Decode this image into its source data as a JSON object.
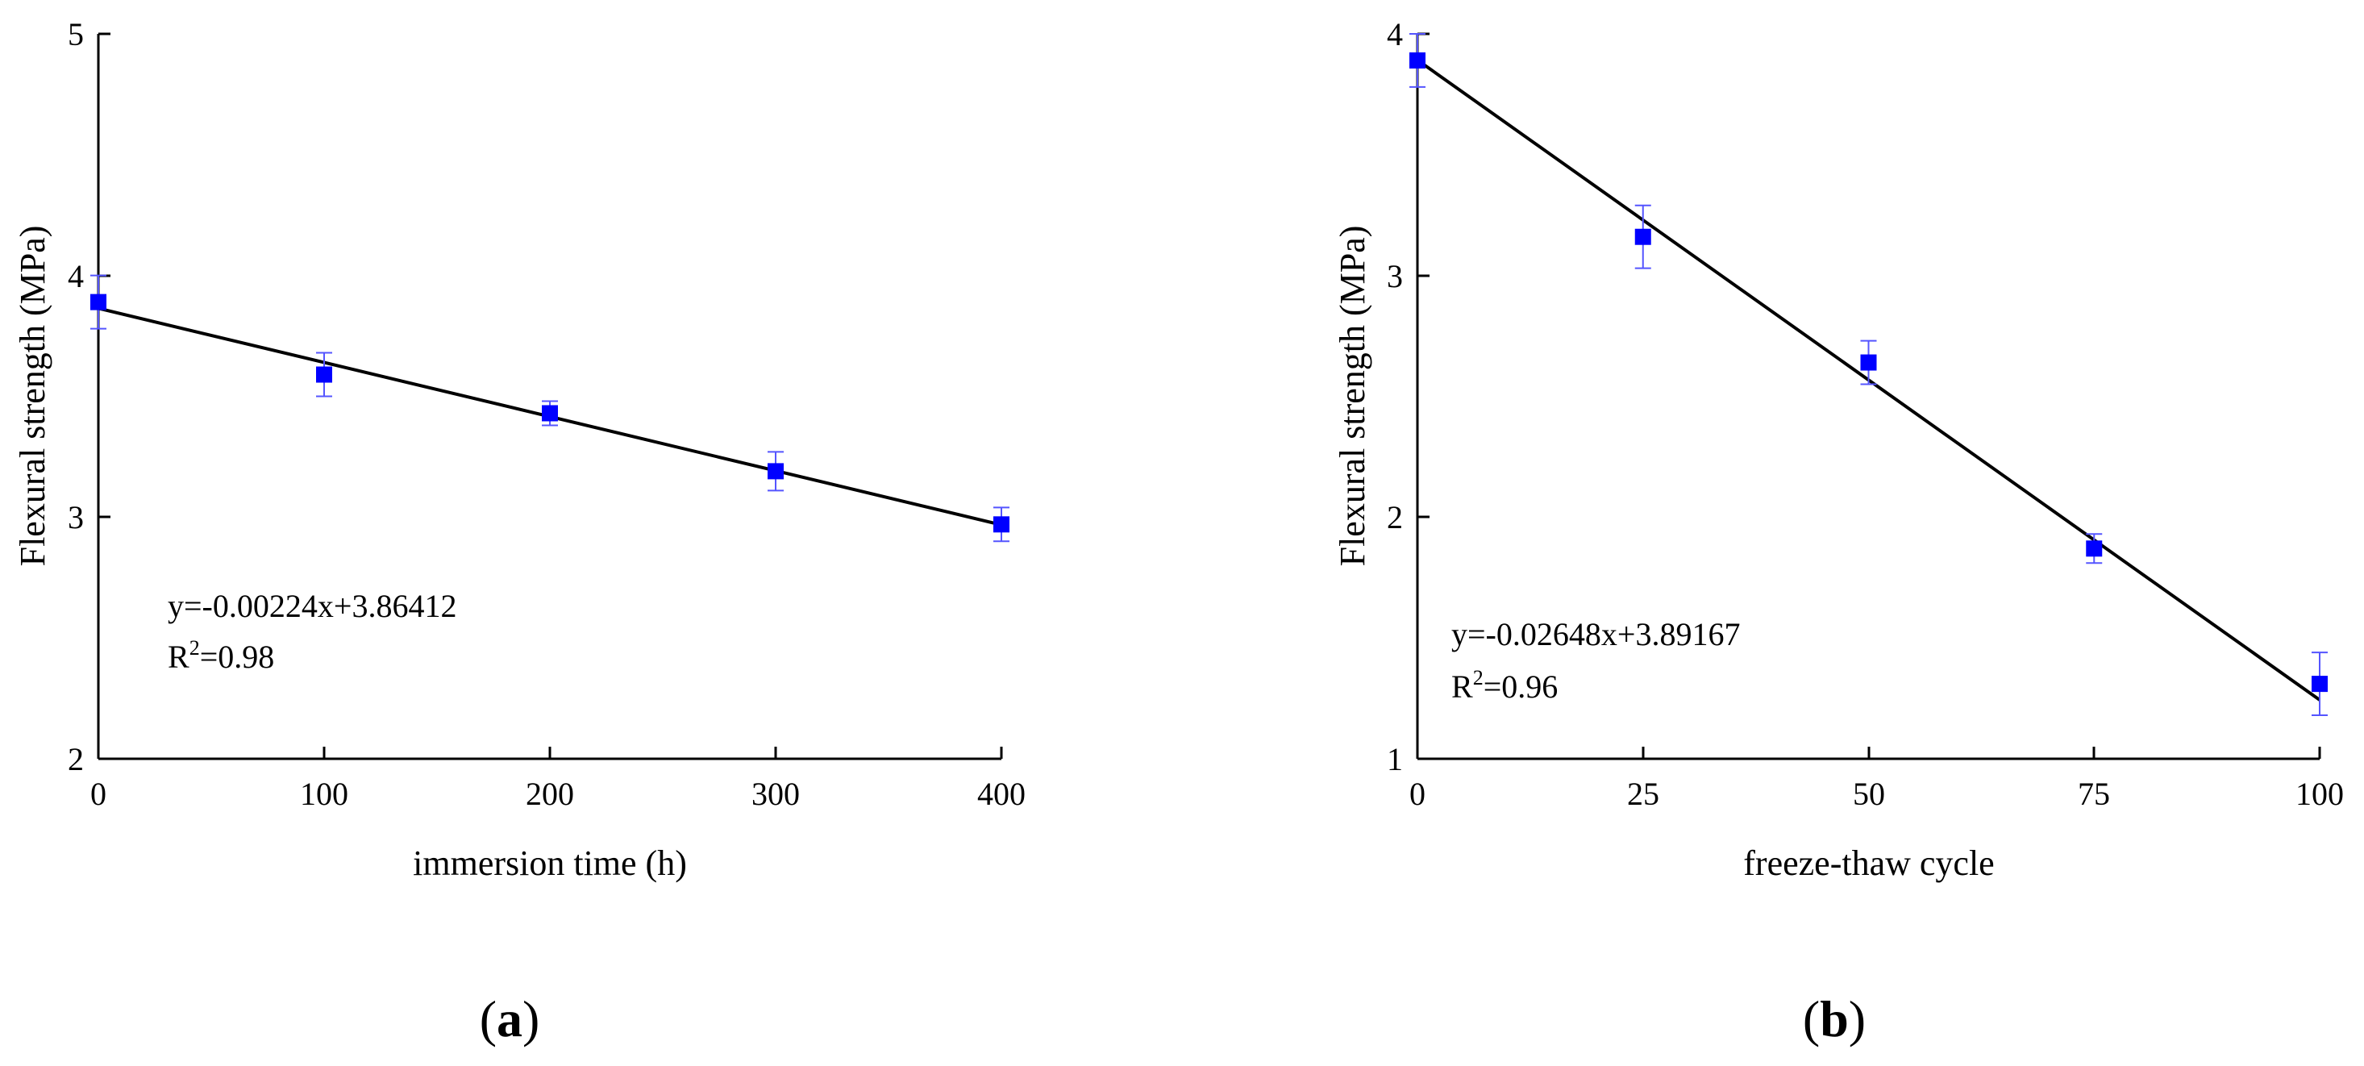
{
  "colors": {
    "marker": "#0000ff",
    "errorbar": "#5555ff",
    "axis": "#000000",
    "fit": "#000000"
  },
  "chart_data": [
    {
      "type": "scatter",
      "panel_label": "a",
      "xlabel": "immersion time (h)",
      "ylabel": "Flexural strength (MPa)",
      "xlim": [
        0,
        400
      ],
      "ylim": [
        2,
        5
      ],
      "xticks": [
        "0",
        "100",
        "200",
        "300",
        "400"
      ],
      "yticks": [
        "2",
        "3",
        "4",
        "5"
      ],
      "x": [
        0,
        100,
        200,
        300,
        400
      ],
      "y": [
        3.89,
        3.59,
        3.43,
        3.19,
        2.97
      ],
      "yerr": [
        0.11,
        0.09,
        0.05,
        0.08,
        0.07
      ],
      "fit": {
        "slope": -0.00224,
        "intercept": 3.86412
      },
      "equation": "y=-0.00224x+3.86412",
      "r2_prefix": "R",
      "r2_sup": "2",
      "r2_value": "=0.98"
    },
    {
      "type": "scatter",
      "panel_label": "b",
      "xlabel": "freeze-thaw cycle",
      "ylabel": "Flexural strength (MPa)",
      "xlim": [
        0,
        100
      ],
      "ylim": [
        1,
        4
      ],
      "xticks": [
        "0",
        "25",
        "50",
        "75",
        "100"
      ],
      "yticks": [
        "1",
        "2",
        "3",
        "4"
      ],
      "x": [
        0,
        25,
        50,
        75,
        100
      ],
      "y": [
        3.89,
        3.16,
        2.64,
        1.87,
        1.31
      ],
      "yerr": [
        0.11,
        0.13,
        0.09,
        0.06,
        0.13
      ],
      "fit": {
        "slope": -0.02648,
        "intercept": 3.89167
      },
      "equation": "y=-0.02648x+3.89167",
      "r2_prefix": "R",
      "r2_sup": "2",
      "r2_value": "=0.96"
    }
  ]
}
